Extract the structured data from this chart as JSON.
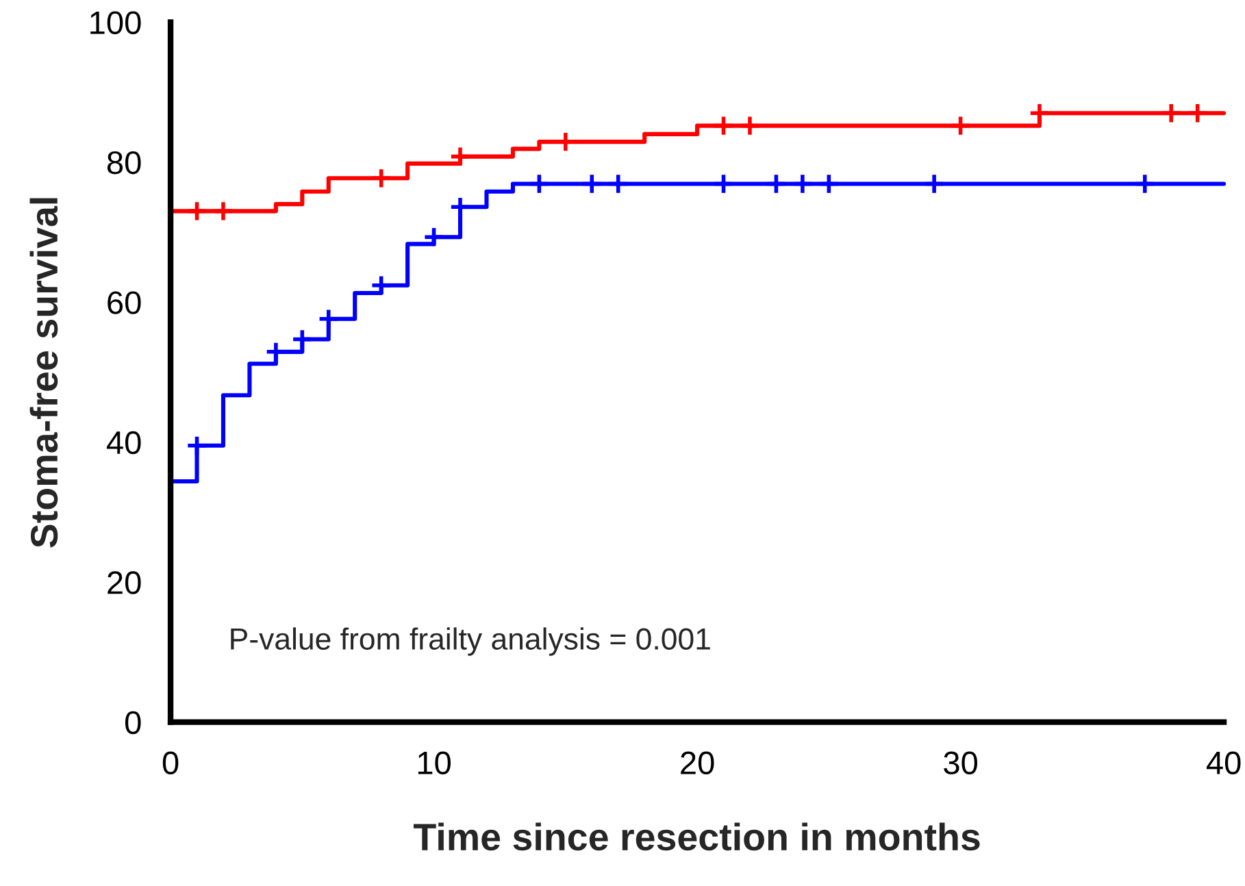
{
  "chart_data": {
    "type": "step",
    "xlabel": "Time since resection in months",
    "ylabel": "Stoma-free survival",
    "xlim": [
      0,
      40
    ],
    "xticks": [
      0,
      10,
      20,
      30,
      40
    ],
    "ylim": [
      0,
      100
    ],
    "yticks": [
      0,
      20,
      40,
      60,
      80,
      100
    ],
    "grid": false,
    "legend": false,
    "line_style": "solid",
    "marker": "none",
    "annotations": [
      "P-value from frailty analysis = 0.001"
    ],
    "series": [
      {
        "color": "#0000ff",
        "x": [
          0,
          0,
          1,
          2,
          3,
          4,
          5,
          6,
          7,
          8,
          9,
          10,
          11,
          12,
          13,
          40
        ],
        "values": [
          0,
          34.4,
          39.5,
          46.7,
          51.2,
          52.9,
          54.7,
          57.6,
          61.3,
          62.4,
          68.3,
          69.3,
          73.6,
          75.8,
          76.9,
          76.9
        ]
      },
      {
        "color": "#ff0000",
        "x": [
          0,
          0,
          4,
          5,
          6,
          9,
          11,
          13,
          14,
          18,
          20,
          33,
          40
        ],
        "values": [
          0,
          73.0,
          74.0,
          75.8,
          77.7,
          79.8,
          80.8,
          81.9,
          82.9,
          84.0,
          85.2,
          87.0,
          87.0
        ]
      },
      {
        "type": "scatter",
        "marker": "cross",
        "color": "#0000ff",
        "x": [
          1,
          4,
          5,
          6,
          8,
          10,
          11,
          14,
          16,
          17,
          21,
          23,
          24,
          25,
          29,
          37
        ],
        "values": [
          39.5,
          52.9,
          54.7,
          57.6,
          62.4,
          69.3,
          73.6,
          76.9,
          76.9,
          76.9,
          76.9,
          76.9,
          76.9,
          76.9,
          76.9,
          76.9
        ]
      },
      {
        "type": "scatter",
        "marker": "cross",
        "color": "#ff0000",
        "x": [
          1,
          2,
          8,
          11,
          15,
          21,
          22,
          30,
          33,
          38,
          39
        ],
        "values": [
          73.0,
          73.0,
          77.7,
          80.8,
          82.9,
          85.2,
          85.2,
          85.2,
          87.0,
          87.0,
          87.0
        ]
      }
    ]
  }
}
